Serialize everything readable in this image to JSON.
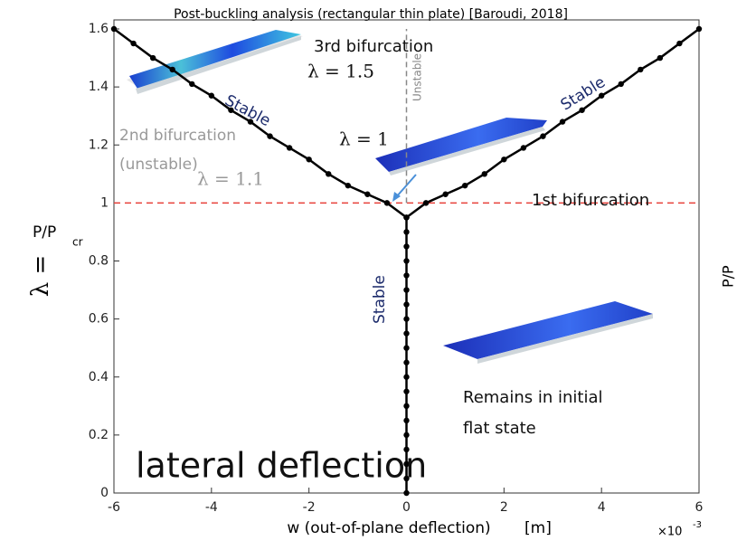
{
  "chart_data": {
    "type": "line",
    "title": "Post-buckling analysis (rectangular thin plate) [Baroudi, 2018]",
    "xlabel": "w (out-of-plane deflection)",
    "xlabel_unit": "[m]",
    "x_multiplier": "×10",
    "x_multiplier_exp": "-3",
    "ylabel_lambda": "λ =",
    "ylabel": "P/P",
    "ylabel_sub": "cr",
    "right_label": "P/P",
    "xlim": [
      -6,
      6
    ],
    "xticks": [
      -6,
      -4,
      -2,
      0,
      2,
      4,
      6
    ],
    "ylim": [
      0,
      1.6
    ],
    "yticks": [
      0,
      0.2,
      0.4,
      0.6,
      0.8,
      1,
      1.2,
      1.4,
      1.6
    ],
    "hline": {
      "value": 1,
      "color": "#e8403a"
    },
    "vline": {
      "value": 0,
      "from": 1,
      "to": 1.6,
      "color": "#888888"
    },
    "series": [
      {
        "color": "#000000",
        "x": [
          0,
          0,
          0,
          0,
          0,
          0,
          0,
          0,
          0,
          0,
          0,
          0,
          0,
          0,
          0,
          0,
          0,
          0,
          0,
          0
        ],
        "values": [
          0,
          0.05,
          0.1,
          0.15,
          0.2,
          0.25,
          0.3,
          0.35,
          0.4,
          0.45,
          0.5,
          0.55,
          0.6,
          0.65,
          0.7,
          0.75,
          0.8,
          0.85,
          0.9,
          0.95
        ]
      },
      {
        "color": "#000000",
        "x": [
          0,
          -0.4,
          -0.8,
          -1.2,
          -1.6,
          -2,
          -2.4,
          -2.8,
          -3.2,
          -3.6,
          -4,
          -4.4,
          -4.8,
          -5.2,
          -5.6,
          -6
        ],
        "values": [
          0.95,
          1.0,
          1.03,
          1.06,
          1.1,
          1.15,
          1.19,
          1.23,
          1.28,
          1.32,
          1.37,
          1.41,
          1.46,
          1.5,
          1.55,
          1.6
        ]
      },
      {
        "color": "#000000",
        "x": [
          0,
          0.4,
          0.8,
          1.2,
          1.6,
          2,
          2.4,
          2.8,
          3.2,
          3.6,
          4,
          4.4,
          4.8,
          5.2,
          5.6,
          6
        ],
        "values": [
          0.95,
          1.0,
          1.03,
          1.06,
          1.1,
          1.15,
          1.19,
          1.23,
          1.28,
          1.32,
          1.37,
          1.41,
          1.46,
          1.5,
          1.55,
          1.6
        ]
      }
    ],
    "annotations": [
      "3rd bifurcation",
      "λ = 1.5",
      "Unstable",
      "Stable",
      "Stable",
      "Stable",
      "2nd bifurcation",
      "(unstable)",
      "λ = 1.1",
      "λ = 1",
      "1st bifurcation",
      "Remains in initial",
      "flat state",
      "lateral deflection"
    ]
  }
}
